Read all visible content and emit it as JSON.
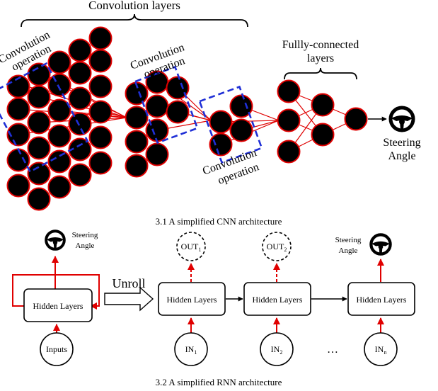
{
  "cnn": {
    "title_conv_layers": "Convolution layers",
    "conv_op_1": [
      "Convolution",
      "operation"
    ],
    "conv_op_2": [
      "Convolution",
      "operation"
    ],
    "conv_op_3": [
      "Convolution",
      "operation"
    ],
    "fc_layers": [
      "Fullly-connected",
      "layers"
    ],
    "output": [
      "Steering",
      "Angle"
    ],
    "caption": "3.1 A simplified CNN architecture",
    "colors": {
      "neuron_fill": "#000000",
      "neuron_stroke": "#e00000",
      "connection": "#e00000",
      "kernel_box": "#1f2fd6"
    },
    "icon": "steering-wheel-icon"
  },
  "rnn": {
    "folded": {
      "hidden": "Hidden Layers",
      "input": "Inputs",
      "output": [
        "Steering",
        "Angle"
      ]
    },
    "unroll_label": "Unroll",
    "steps": [
      {
        "hidden": "Hidden Layers",
        "input": "IN",
        "input_sub": "1",
        "output": "OUT",
        "output_sub": "1"
      },
      {
        "hidden": "Hidden Layers",
        "input": "IN",
        "input_sub": "2",
        "output": "OUT",
        "output_sub": "2"
      },
      {
        "hidden": "Hidden Layers",
        "input": "IN",
        "input_sub": "n",
        "output": [
          "Steering",
          "Angle"
        ]
      }
    ],
    "ellipsis": "…",
    "caption": "3.2 A simplified RNN architecture",
    "icon": "steering-wheel-icon"
  }
}
